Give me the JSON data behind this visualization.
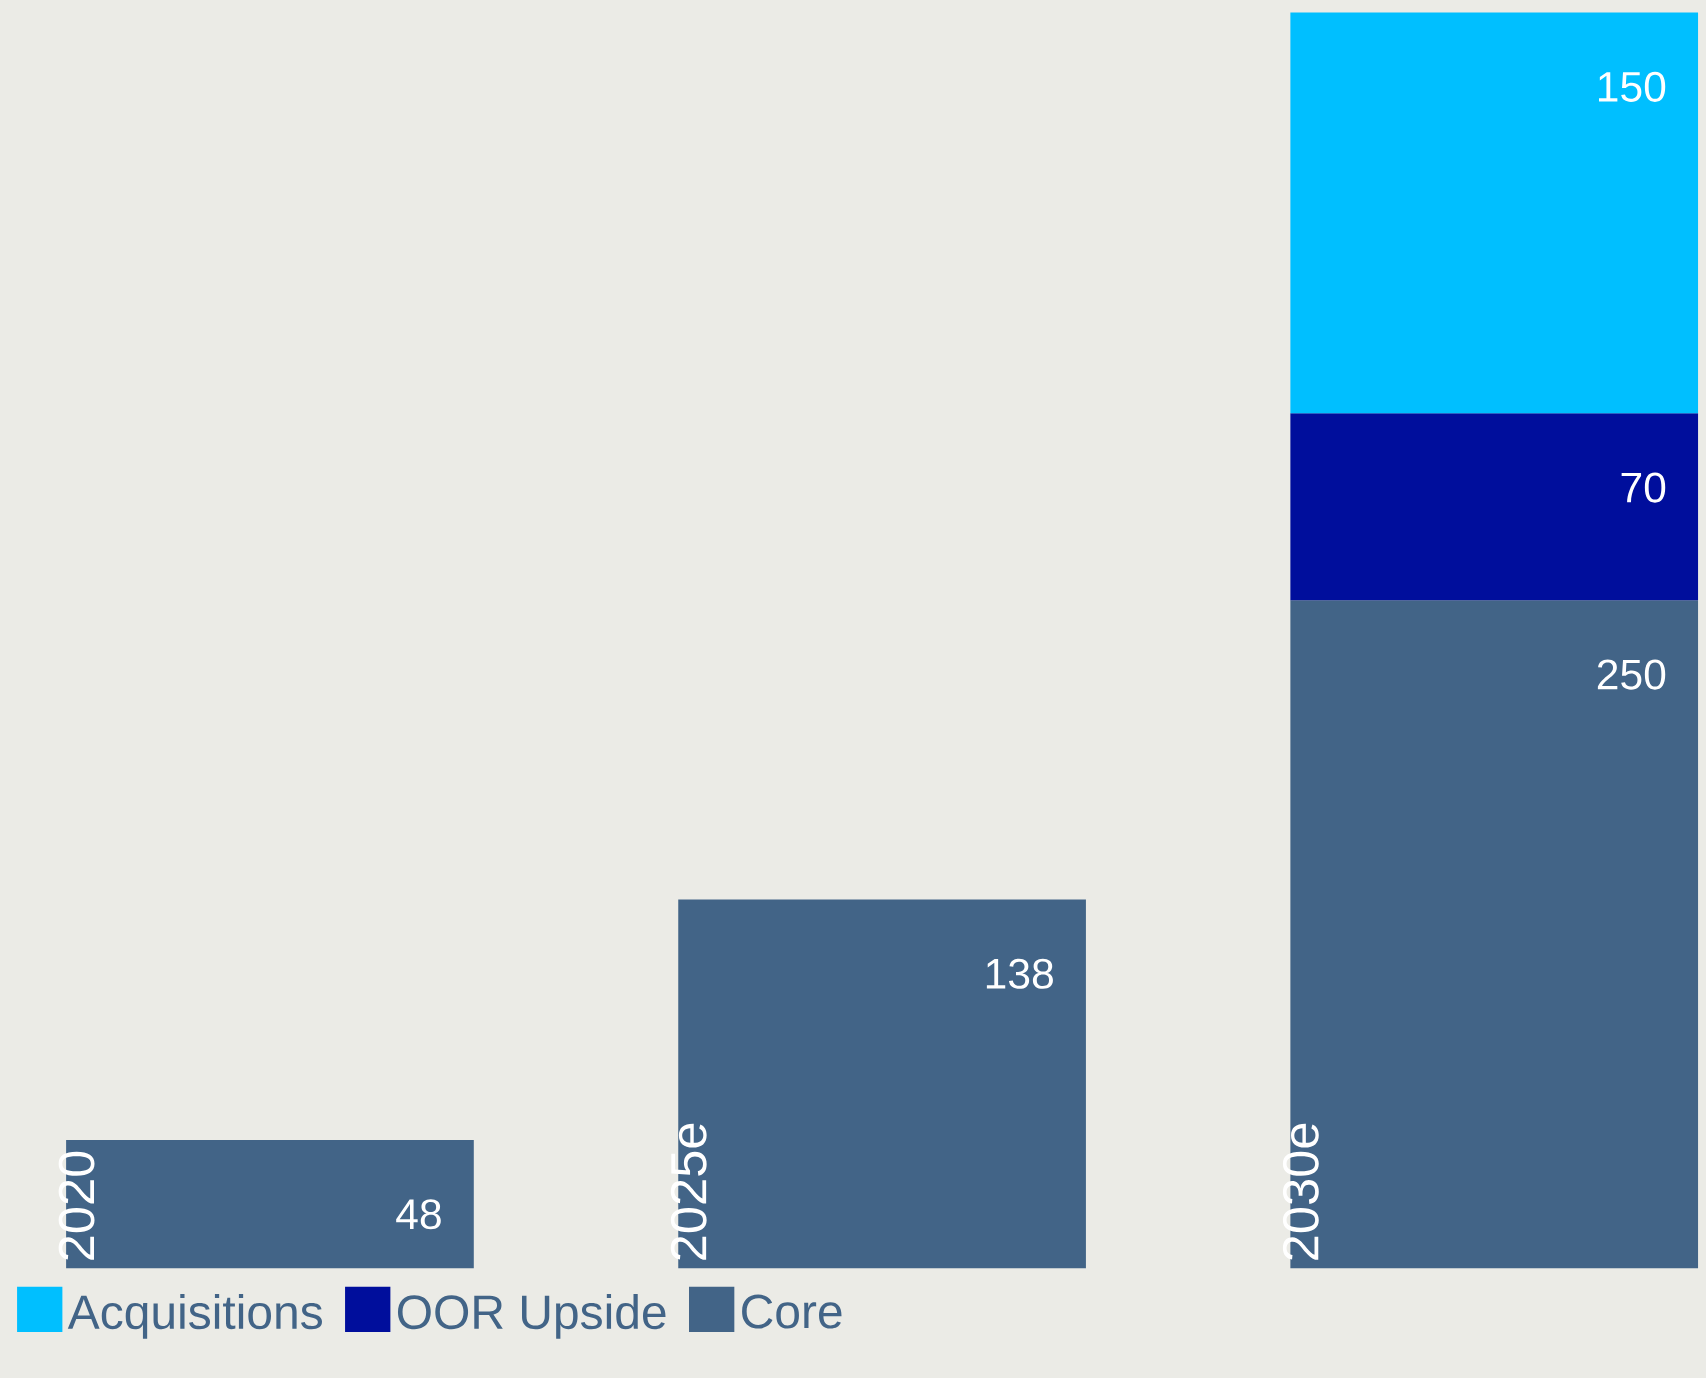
{
  "chart_data": {
    "type": "bar",
    "stacked": true,
    "data_labels": true,
    "legend": "bottom left",
    "categories": [
      "2020",
      "2025e",
      "2030e"
    ],
    "series": [
      {
        "name": "Core",
        "color": "#426487",
        "values": [
          48,
          138,
          250
        ]
      },
      {
        "name": "OOR Upside",
        "color": "#000e9c",
        "values": [
          null,
          null,
          70
        ]
      },
      {
        "name": "Acquisitions",
        "color": "#00bfff",
        "values": [
          null,
          null,
          150
        ]
      }
    ]
  }
}
